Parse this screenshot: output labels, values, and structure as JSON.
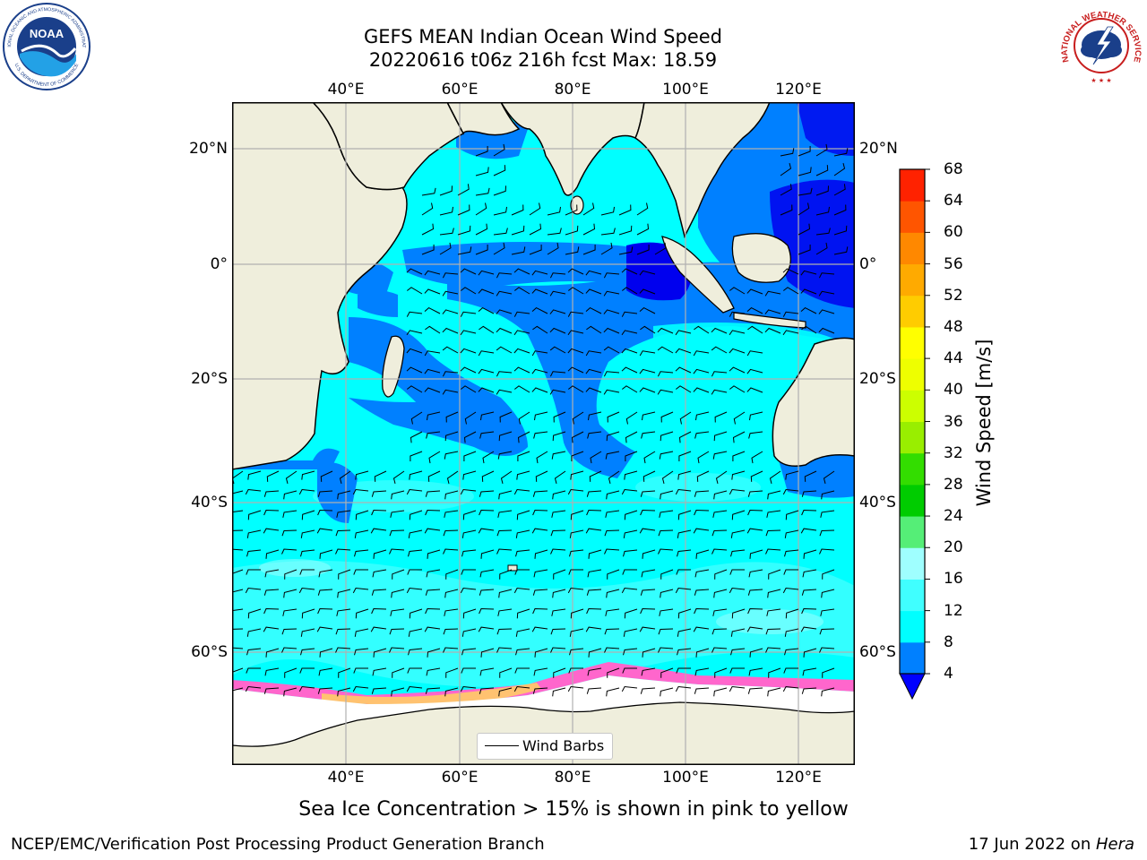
{
  "title": {
    "line1": "GEFS MEAN Indian Ocean Wind Speed",
    "line2": "20220616 t06z 216h fcst   Max: 18.59"
  },
  "map": {
    "lon_labels": [
      "40°E",
      "60°E",
      "80°E",
      "100°E",
      "120°E"
    ],
    "lat_labels": [
      "20°N",
      "0°",
      "20°S",
      "40°S",
      "60°S"
    ],
    "lon_range": [
      20,
      130
    ],
    "lat_range": [
      -71,
      28
    ],
    "colors": {
      "ocean_low": "#0080ff",
      "ocean_mid": "#00ffff",
      "ocean_dark": "#0000ee",
      "land": "#efeedc",
      "ice": "#ffffff",
      "ice_edge": "#ff66cc"
    }
  },
  "legend": {
    "label": "Wind Barbs"
  },
  "colorbar": {
    "label": "Wind Speed [m/s]",
    "levels": [
      4,
      8,
      12,
      16,
      20,
      24,
      28,
      32,
      36,
      40,
      44,
      48,
      52,
      56,
      60,
      64,
      68
    ],
    "tick_labels": [
      "4",
      "8",
      "12",
      "16",
      "20",
      "24",
      "28",
      "32",
      "36",
      "40",
      "44",
      "48",
      "52",
      "56",
      "60",
      "64",
      "68"
    ],
    "colors": [
      "#0080ff",
      "#00ffff",
      "#40ffff",
      "#9fffff",
      "#55ee77",
      "#00cc00",
      "#33dd00",
      "#99ee00",
      "#ccff00",
      "#eeff00",
      "#ffff00",
      "#ffcc00",
      "#ffaa00",
      "#ff8800",
      "#ff5500",
      "#ff2200"
    ],
    "under_color": "#0000ff"
  },
  "note": "Sea Ice Concentration > 15% is shown in pink to yellow",
  "footer": {
    "left": "NCEP/EMC/Verification Post Processing Product Generation Branch",
    "right_prefix": "17 Jun 2022 on ",
    "right_host": "Hera"
  },
  "logos": {
    "noaa": "NOAA",
    "noaa_ring_top": "NATIONAL OCEANIC AND ATMOSPHERIC ADMINISTRATION",
    "noaa_ring_bottom": "U.S. DEPARTMENT OF COMMERCE",
    "nws_ring": "NATIONAL WEATHER SERVICE"
  }
}
